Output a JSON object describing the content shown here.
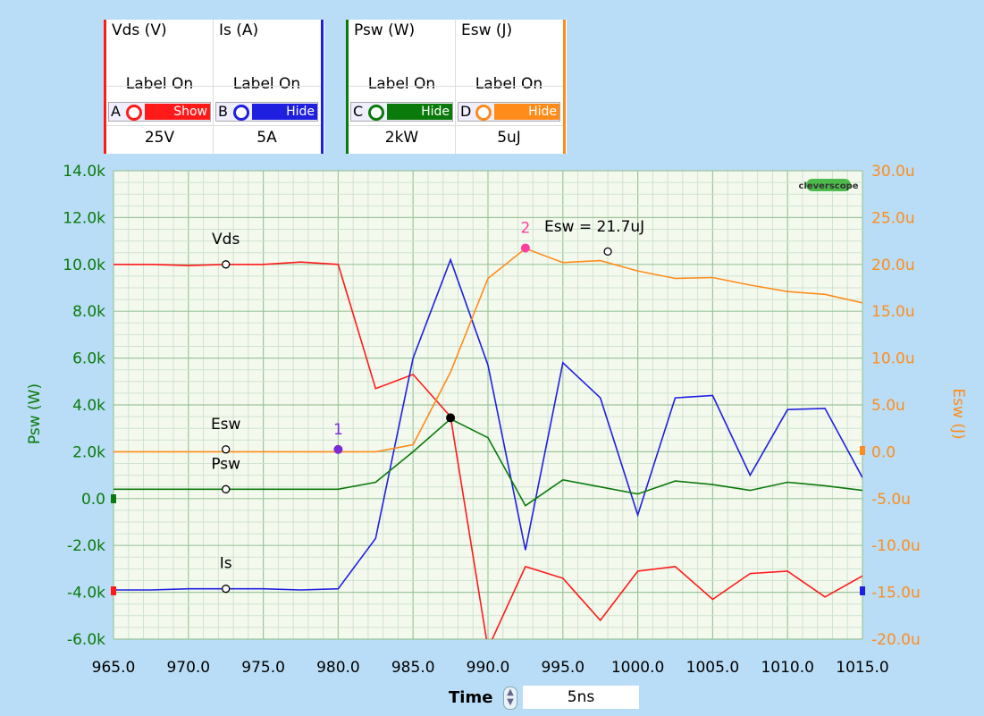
{
  "channels_left": [
    {
      "name": "Vds (V)",
      "label": "Label On",
      "letter": "A",
      "button": "Show",
      "color": "#ff1a1a",
      "scale": "25V"
    },
    {
      "name": "Is (A)",
      "label": "Label On",
      "letter": "B",
      "button": "Hide",
      "color": "#1f1fe0",
      "scale": "5A"
    }
  ],
  "channels_right": [
    {
      "name": "Psw (W)",
      "label": "Label On",
      "letter": "C",
      "button": "Hide",
      "color": "#0a7a0a",
      "scale": "2kW"
    },
    {
      "name": "Esw (J)",
      "label": "Label On",
      "letter": "D",
      "button": "Hide",
      "color": "#ff8c1a",
      "scale": "5uJ"
    }
  ],
  "logo": "cleverscope",
  "time_control": {
    "label": "Time",
    "value": "5ns"
  },
  "chart_data": {
    "type": "line",
    "x": [
      965,
      967.5,
      970,
      972.5,
      975,
      977.5,
      980,
      982.5,
      985,
      987.5,
      990,
      992.5,
      995,
      997.5,
      1000,
      1002.5,
      1005,
      1007.5,
      1010,
      1012.5,
      1015
    ],
    "x_ticks": [
      "965.0",
      "970.0",
      "975.0",
      "980.0",
      "985.0",
      "990.0",
      "995.0",
      "1000.0",
      "1005.0",
      "1010.0",
      "1015.0"
    ],
    "xlim": [
      965,
      1015
    ],
    "y_left": {
      "label": "Psw (W)",
      "lim": [
        -6000,
        14000
      ],
      "ticks": [
        "14.0k",
        "12.0k",
        "10.0k",
        "8.0k",
        "6.0k",
        "4.0k",
        "2.0k",
        "0.0",
        "-2.0k",
        "-4.0k",
        "-6.0k"
      ]
    },
    "y_right": {
      "label": "Esw (J)",
      "lim": [
        -2e-05,
        3e-05
      ],
      "ticks": [
        "30.0u",
        "25.0u",
        "20.0u",
        "15.0u",
        "10.0u",
        "5.0u",
        "0.0",
        "-5.0u",
        "-10.0u",
        "-15.0u",
        "-20.0u"
      ]
    },
    "grid": true,
    "series": [
      {
        "name": "Vds",
        "color": "#ff1a1a",
        "values_left_axis": [
          10000,
          10000,
          9950,
          10000,
          10000,
          10100,
          10000,
          4700,
          5300,
          3500,
          -6400,
          -2900,
          -3400,
          -5200,
          -3100,
          -2900,
          -4300,
          -3200,
          -3100,
          -4200,
          -3300
        ]
      },
      {
        "name": "Is",
        "color": "#1f1fe0",
        "values_left_axis": [
          -3900,
          -3900,
          -3850,
          -3850,
          -3850,
          -3900,
          -3850,
          -1700,
          6000,
          10200,
          5700,
          -2200,
          5800,
          4300,
          -700,
          4300,
          4400,
          1000,
          3800,
          3850,
          900
        ]
      },
      {
        "name": "Psw",
        "color": "#0a7a0a",
        "values_left_axis": [
          400,
          400,
          400,
          400,
          400,
          400,
          400,
          700,
          2000,
          3400,
          2600,
          -300,
          800,
          500,
          200,
          750,
          600,
          350,
          700,
          550,
          350
        ]
      },
      {
        "name": "Esw",
        "color": "#ff8c1a",
        "values_right_axis": [
          0.0,
          0.0,
          0.0,
          0.0,
          0.0,
          0.0,
          0.0,
          0.0,
          7.5e-07,
          8.5e-06,
          1.85e-05,
          2.17e-05,
          2.02e-05,
          2.04e-05,
          1.93e-05,
          1.85e-05,
          1.86e-05,
          1.78e-05,
          1.71e-05,
          1.68e-05,
          1.59e-05
        ]
      }
    ],
    "trace_labels": [
      {
        "text": "Vds",
        "x": 972.5,
        "y_left": 10000
      },
      {
        "text": "Esw",
        "x": 972.5,
        "y_left": 2100
      },
      {
        "text": "Psw",
        "x": 972.5,
        "y_left": 400
      },
      {
        "text": "Is",
        "x": 972.5,
        "y_left": -3850
      }
    ],
    "markers": [
      {
        "id": "1",
        "x": 980,
        "y_left": 2100,
        "color": "#7a2bd6"
      },
      {
        "id": "2",
        "x": 992.5,
        "y_left": 10700,
        "color": "#ff3fa0"
      }
    ],
    "annotation": {
      "text": "Esw = 21.7uJ",
      "x": 998,
      "y_left": 10550
    },
    "crossing_point": {
      "x": 987.5,
      "y_left": 3450
    }
  }
}
